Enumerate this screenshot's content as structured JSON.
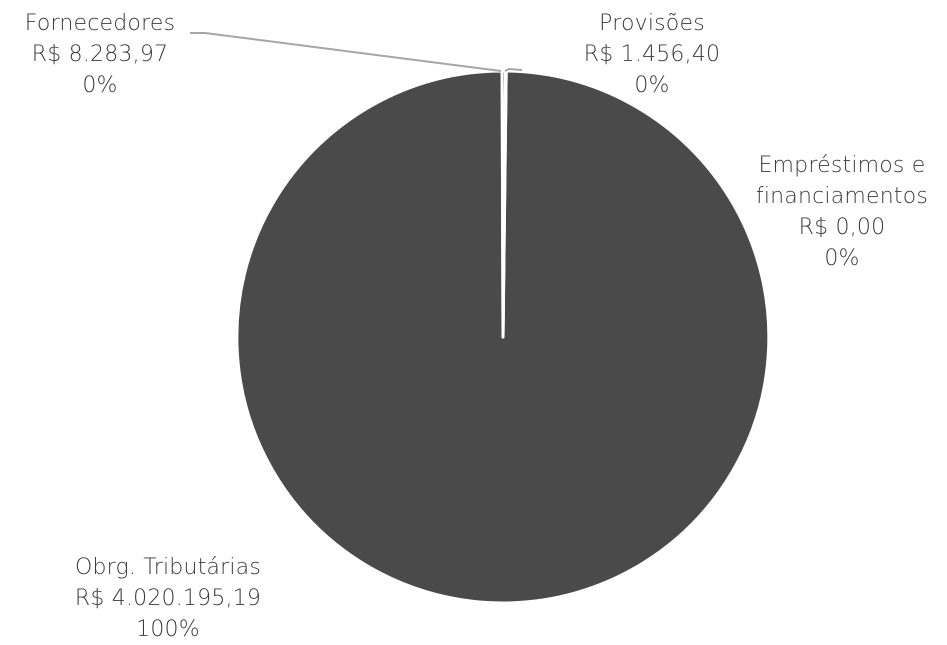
{
  "chart_data": {
    "type": "pie",
    "title": "",
    "start_angle_deg": 0,
    "direction": "clockwise",
    "slices": [
      {
        "name": "Obrg. Tributárias",
        "value": 4020195.19,
        "value_label": "R$ 4.020.195,19",
        "percent_label": "100%",
        "color": "#4a4a4a"
      },
      {
        "name": "Fornecedores",
        "value": 8283.97,
        "value_label": "R$ 8.283,97",
        "percent_label": "0%",
        "color": "#4a4a4a"
      },
      {
        "name": "Provisões",
        "value": 1456.4,
        "value_label": "R$ 1.456,40",
        "percent_label": "0%",
        "color": "#4a4a4a"
      },
      {
        "name": "Empréstimos e financiamentos",
        "value": 0.0,
        "value_label": "R$ 0,00",
        "percent_label": "0%",
        "color": "#4a4a4a"
      }
    ],
    "slice_border_color": "#ffffff",
    "leader_line_color": "#a6a6a6",
    "label_color": "#3a3a3a"
  }
}
